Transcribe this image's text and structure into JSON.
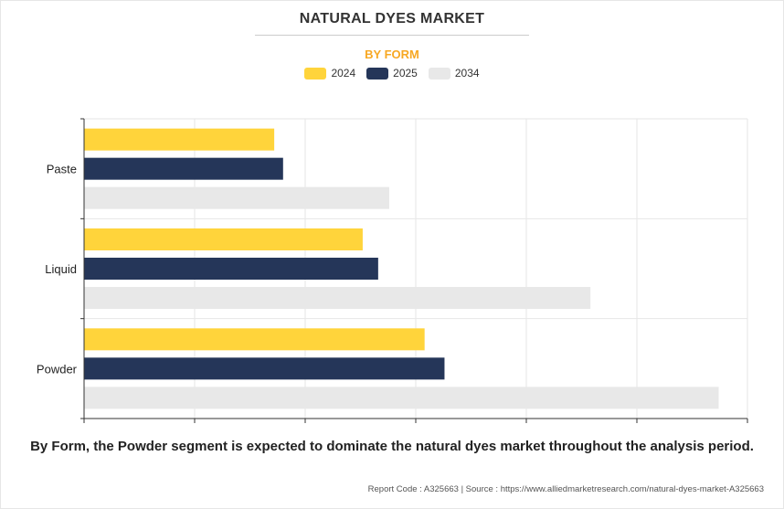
{
  "title": "NATURAL DYES MARKET",
  "subtitle": "BY FORM",
  "colors": {
    "2024": "#ffd43b",
    "2025": "#253659",
    "2034": "#e8e8e8",
    "subtitle": "#f7a823"
  },
  "legend": [
    {
      "label": "2024",
      "color": "#ffd43b"
    },
    {
      "label": "2025",
      "color": "#253659"
    },
    {
      "label": "2034",
      "color": "#e8e8e8"
    }
  ],
  "chart_data": {
    "type": "bar",
    "orientation": "horizontal",
    "categories": [
      "Paste",
      "Liquid",
      "Powder"
    ],
    "series": [
      {
        "name": "2024",
        "values": [
          1.72,
          2.52,
          3.08
        ]
      },
      {
        "name": "2025",
        "values": [
          1.8,
          2.66,
          3.26
        ]
      },
      {
        "name": "2034",
        "values": [
          2.76,
          4.58,
          5.74
        ]
      }
    ],
    "xlim": [
      0,
      6
    ],
    "grid": true,
    "legend_position": "top-center",
    "title": "NATURAL DYES MARKET",
    "subtitle": "BY FORM"
  },
  "caption": "By Form, the Powder segment is expected to dominate the natural dyes market throughout the analysis period.",
  "footer": "Report Code : A325663  |  Source : https://www.alliedmarketresearch.com/natural-dyes-market-A325663"
}
